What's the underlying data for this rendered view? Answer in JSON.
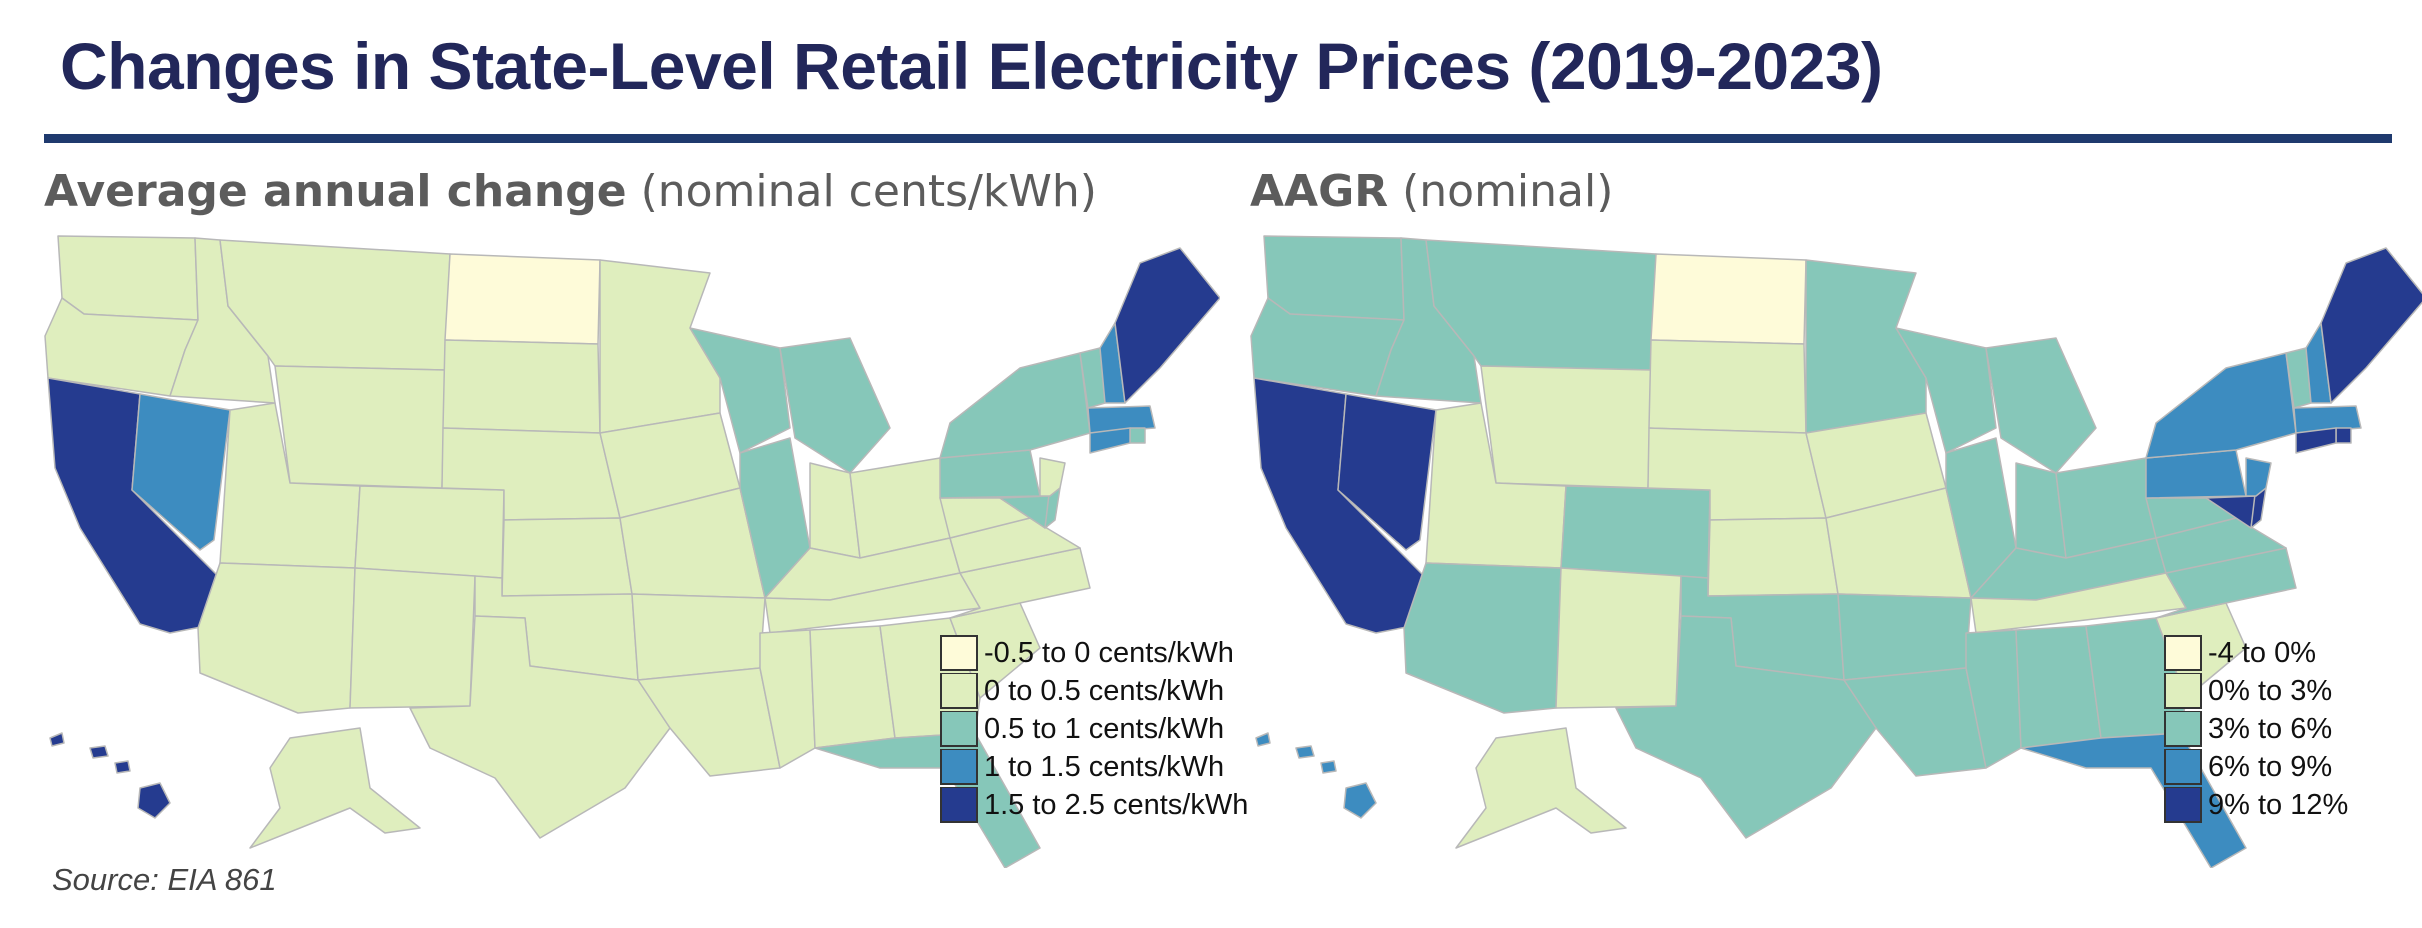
{
  "title": "Changes in State-Level Retail Electricity Prices (2019-2023)",
  "colors": {
    "title": "#22275a",
    "rule": "#1f3a6e",
    "border": "#b8b8b8",
    "scale": [
      "#fefbd9",
      "#dfeebe",
      "#86c7b9",
      "#3d8cc0",
      "#253b8f"
    ]
  },
  "maps": [
    {
      "id": "average-annual-change",
      "subtitle_bold": "Average annual change",
      "subtitle_rest": " (nominal cents/kWh)",
      "legend": [
        "-0.5 to 0 cents/kWh",
        "0 to 0.5 cents/kWh",
        "0.5 to 1 cents/kWh",
        "1 to 1.5 cents/kWh",
        "1.5 to 2.5 cents/kWh"
      ],
      "default_class": 1,
      "state_classes": {
        "ND": 0,
        "CA": 4,
        "HI": 4,
        "ME": 4,
        "NV": 3,
        "NH": 3,
        "MA": 3,
        "CT": 3,
        "WI": 2,
        "MI": 2,
        "IL": 2,
        "NY": 2,
        "PA": 2,
        "VT": 2,
        "RI": 2,
        "MD": 2,
        "DE": 2,
        "FL": 2
      }
    },
    {
      "id": "aagr",
      "subtitle_bold": "AAGR",
      "subtitle_rest": " (nominal)",
      "legend": [
        "-4 to 0%",
        "0% to 3%",
        "3% to 6%",
        "6% to 9%",
        "9% to 12%"
      ],
      "default_class": 2,
      "state_classes": {
        "ND": 0,
        "WY": 1,
        "UT": 1,
        "NM": 1,
        "SD": 1,
        "NE": 1,
        "KS": 1,
        "IA": 1,
        "MO": 1,
        "TN": 1,
        "SC": 1,
        "AK": 1,
        "NY": 3,
        "PA": 3,
        "NH": 3,
        "MA": 3,
        "FL": 3,
        "HI": 3,
        "NJ": 3,
        "CA": 4,
        "NV": 4,
        "ME": 4,
        "CT": 4,
        "RI": 4,
        "MD": 4,
        "DE": 4
      }
    }
  ],
  "source": "Source: EIA 861"
}
